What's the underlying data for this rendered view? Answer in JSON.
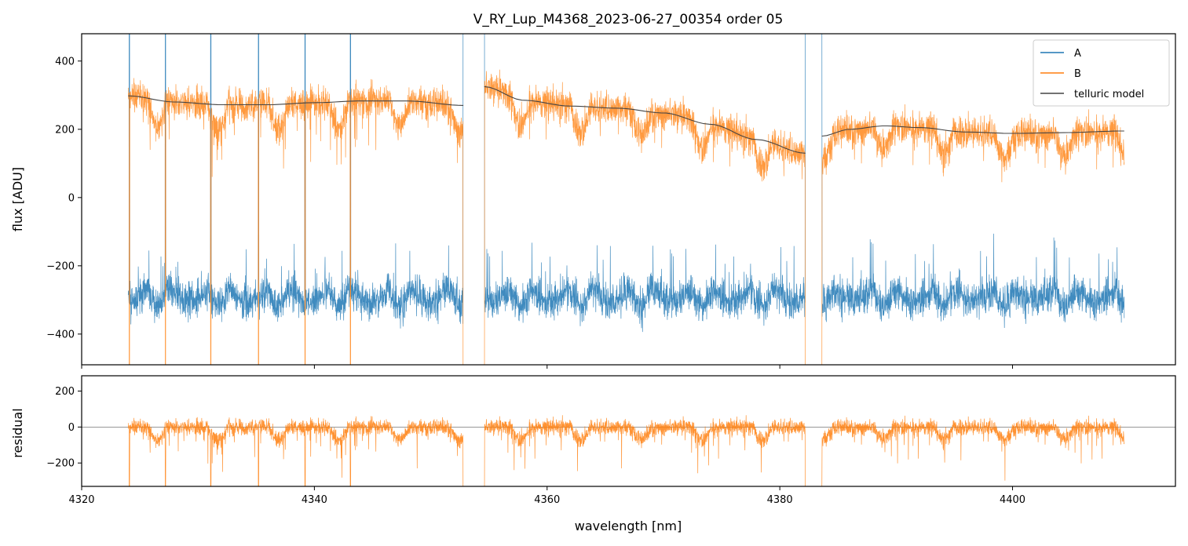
{
  "chart_data": [
    {
      "type": "line",
      "title": "V_RY_Lup_M4368_2023-06-27_00354  order 05",
      "xlabel": "",
      "ylabel": "flux [ADU]",
      "xlim": [
        4320,
        4414
      ],
      "ylim": [
        -490,
        480
      ],
      "yticks": [
        -400,
        -200,
        0,
        200,
        400
      ],
      "ytick_labels": [
        "−400",
        "−200",
        "0",
        "200",
        "400"
      ],
      "xticks": [
        4320,
        4340,
        4360,
        4380,
        4400
      ],
      "grid": false,
      "legend_position": "top-right",
      "segments": [
        [
          4324.0,
          4352.8
        ],
        [
          4354.6,
          4382.2
        ],
        [
          4383.6,
          4409.6
        ]
      ],
      "series": [
        {
          "name": "A",
          "color": "#1f77b4",
          "description": "noisy flux around -280 ADU with periodic dips and spikes",
          "baseline": -280,
          "noise_amplitude": 90
        },
        {
          "name": "B",
          "color": "#ff7f0e",
          "description": "noisy flux following the telluric model with periodic dips",
          "noise_amplitude": 80
        },
        {
          "name": "telluric model",
          "color": "#444444",
          "knots": [
            {
              "segment": 0,
              "x": [
                4324.0,
                4328,
                4332,
                4336,
                4340,
                4344,
                4348,
                4352.8
              ],
              "y": [
                298,
                280,
                272,
                272,
                278,
                283,
                283,
                270
              ]
            },
            {
              "segment": 1,
              "x": [
                4354.6,
                4358,
                4362,
                4366,
                4370,
                4374,
                4378,
                4382.2
              ],
              "y": [
                325,
                285,
                268,
                262,
                248,
                215,
                170,
                130
              ]
            },
            {
              "segment": 2,
              "x": [
                4383.6,
                4386,
                4389,
                4392,
                4396,
                4400,
                4404,
                4409.6
              ],
              "y": [
                180,
                200,
                210,
                205,
                192,
                188,
                190,
                195
              ]
            }
          ]
        }
      ]
    },
    {
      "type": "line",
      "title": "",
      "xlabel": "wavelength [nm]",
      "ylabel": "residual",
      "xlim": [
        4320,
        4414
      ],
      "ylim": [
        -330,
        285
      ],
      "yticks": [
        -200,
        0,
        200
      ],
      "ytick_labels": [
        "−200",
        "0",
        "200"
      ],
      "xticks": [
        4320,
        4340,
        4360,
        4380,
        4400
      ],
      "xtick_labels": [
        "4320",
        "4340",
        "4360",
        "4380",
        "4400"
      ],
      "grid": false,
      "reference_line_y": 0,
      "series": [
        {
          "name": "residual",
          "color": "#ff7f0e",
          "description": "noisy residual around 0 with periodic excursions",
          "noise_amplitude": 70
        }
      ]
    }
  ]
}
